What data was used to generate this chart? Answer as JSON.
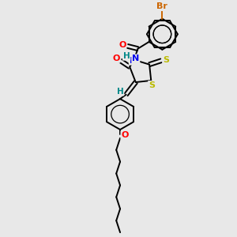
{
  "background_color": "#e8e8e8",
  "figsize": [
    3.0,
    3.0
  ],
  "dpi": 100,
  "bond_color": "#000000",
  "bond_width": 1.4,
  "atom_colors": {
    "Br": "#cc6600",
    "O": "#ff0000",
    "N": "#0000ee",
    "S": "#bbbb00",
    "H": "#008888",
    "C": "#000000"
  },
  "xlim": [
    0,
    10
  ],
  "ylim": [
    -1,
    10
  ]
}
